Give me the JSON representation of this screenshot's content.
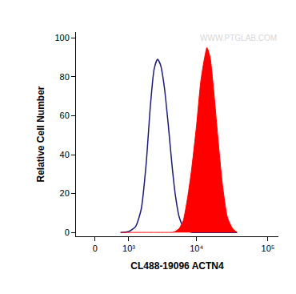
{
  "chart_data": {
    "type": "line",
    "x_label": "CL488-19096 ACTN4",
    "y_label": "Relative Cell Number",
    "annotations": [
      "WWW.PTGLAB.COM"
    ],
    "x": [
      700,
      1000,
      1300,
      1600,
      1900,
      2200,
      2500,
      2800,
      3100,
      3500,
      4000,
      4500,
      5000,
      5700,
      6500,
      7500,
      8500,
      10000,
      11500,
      13000,
      14000,
      15500,
      17500,
      20000,
      23000,
      27000,
      32000,
      37000
    ],
    "series": [
      {
        "type": "line",
        "color": "#1c1c7c",
        "values": [
          0,
          0.5,
          3,
          12,
          35,
          65,
          84,
          89,
          86,
          75,
          55,
          35,
          20,
          8,
          3,
          1,
          0,
          0,
          0,
          0,
          0,
          0,
          0,
          0,
          0,
          0,
          0,
          0
        ]
      },
      {
        "type": "area",
        "color": "#ff0000",
        "values": [
          0,
          0,
          0,
          0,
          0,
          0,
          0,
          0,
          0,
          0,
          0,
          0,
          0.5,
          2,
          6,
          18,
          32,
          55,
          78,
          90,
          95,
          90,
          72,
          48,
          25,
          8,
          2,
          0
        ]
      }
    ],
    "xlim": [
      -500,
      140000
    ],
    "xticks": [
      0,
      {
        "value": 1000,
        "label": "10³"
      },
      {
        "value": 10000,
        "label": "10⁴"
      },
      {
        "value": 100000,
        "label": "10⁵"
      }
    ],
    "ylim": [
      -2,
      103
    ],
    "yticks": [
      0,
      20,
      40,
      60,
      80,
      100
    ],
    "grid": false
  }
}
